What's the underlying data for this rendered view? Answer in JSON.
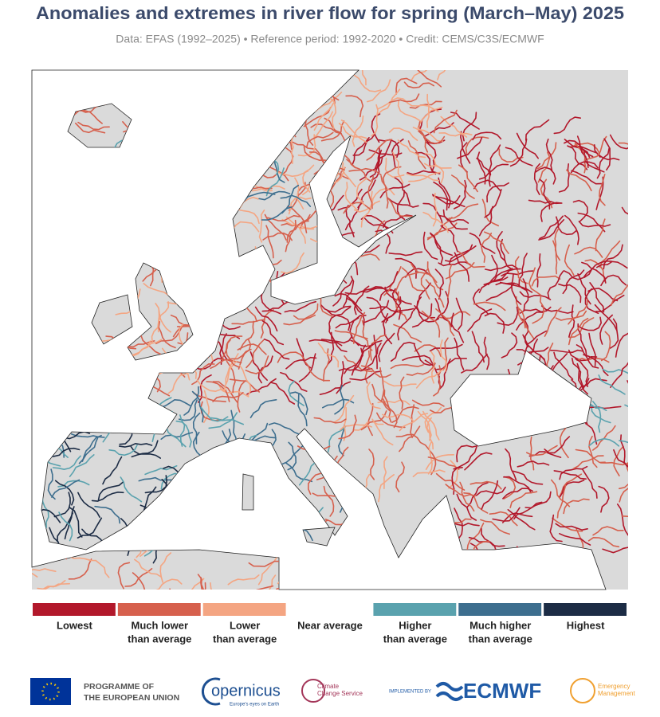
{
  "header": {
    "title": "Anomalies and extremes in river flow for spring (March–May) 2025",
    "subtitle": "Data: EFAS (1992–2025) • Reference period: 1992-2020 • Credit: CEMS/C3S/ECMWF"
  },
  "legend": {
    "items": [
      {
        "label_lines": [
          "Lowest"
        ],
        "color": "#b2182b"
      },
      {
        "label_lines": [
          "Much lower",
          "than average"
        ],
        "color": "#d6604d"
      },
      {
        "label_lines": [
          "Lower",
          "than average"
        ],
        "color": "#f4a582"
      },
      {
        "label_lines": [
          "Near average"
        ]
      },
      {
        "label_lines": [
          "Higher",
          "than average"
        ],
        "color": "#5aa2ae"
      },
      {
        "label_lines": [
          "Much higher",
          "than average"
        ],
        "color": "#3d6e8e"
      },
      {
        "label_lines": [
          "Highest"
        ],
        "color": "#1c2c45"
      }
    ]
  },
  "footer": {
    "eu": [
      "PROGRAMME OF",
      "THE EUROPEAN UNION"
    ],
    "copernicus": {
      "name": "opernicus",
      "tagline": "Europe's eyes on Earth"
    },
    "climate": [
      "Climate",
      "Change Service"
    ],
    "ecmwf": {
      "prefix": "IMPLEMENTED BY",
      "name": "ECMWF"
    },
    "emergency": [
      "Emergency",
      "Management"
    ]
  }
}
